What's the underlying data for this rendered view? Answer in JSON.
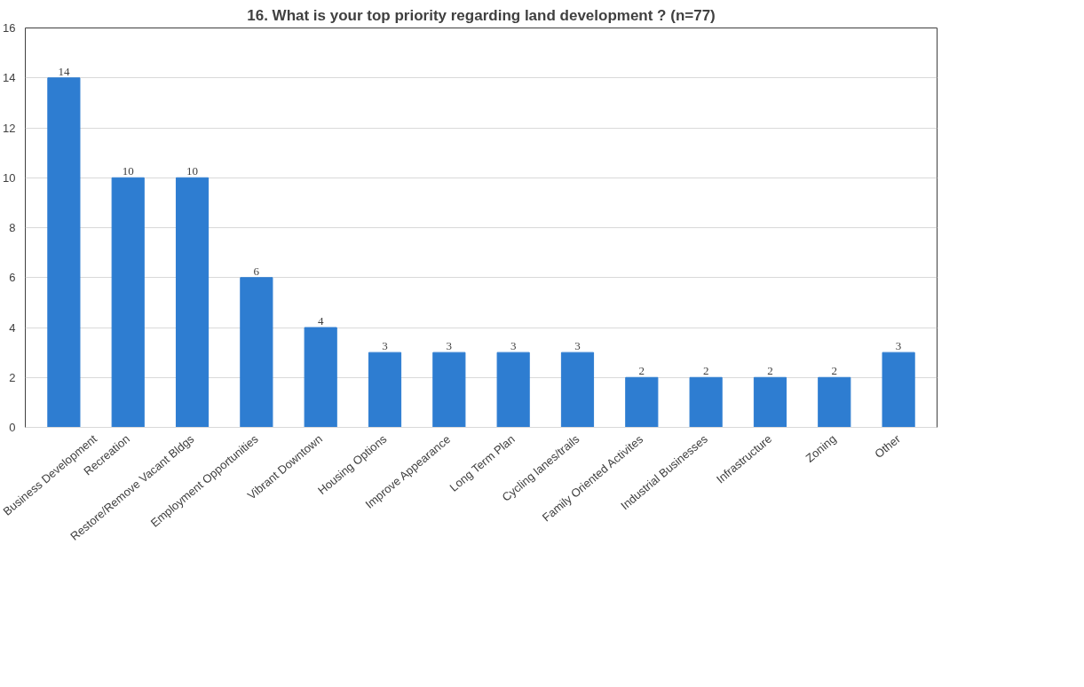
{
  "chart_data": {
    "type": "bar",
    "title": "16. What is your top priority regarding land development ? (n=77)",
    "categories": [
      "Business Development",
      "Recreation",
      "Restore/Remove Vacant Bldgs",
      "Employment Opportunities",
      "Vibrant Downtown",
      "Housing Options",
      "Improve Appearance",
      "Long Term Plan",
      "Cycling lanes/trails",
      "Family Oriented Activites",
      "Industrial Businesses",
      "Infrastructure",
      "Zoning",
      "Other"
    ],
    "values": [
      14,
      10,
      10,
      6,
      4,
      3,
      3,
      3,
      3,
      2,
      2,
      2,
      2,
      3
    ],
    "color": "#2e7dd1",
    "ylim": [
      0,
      16
    ],
    "yticks": [
      0,
      2,
      4,
      6,
      8,
      10,
      12,
      14,
      16
    ],
    "grid": "y",
    "data_labels": true
  }
}
